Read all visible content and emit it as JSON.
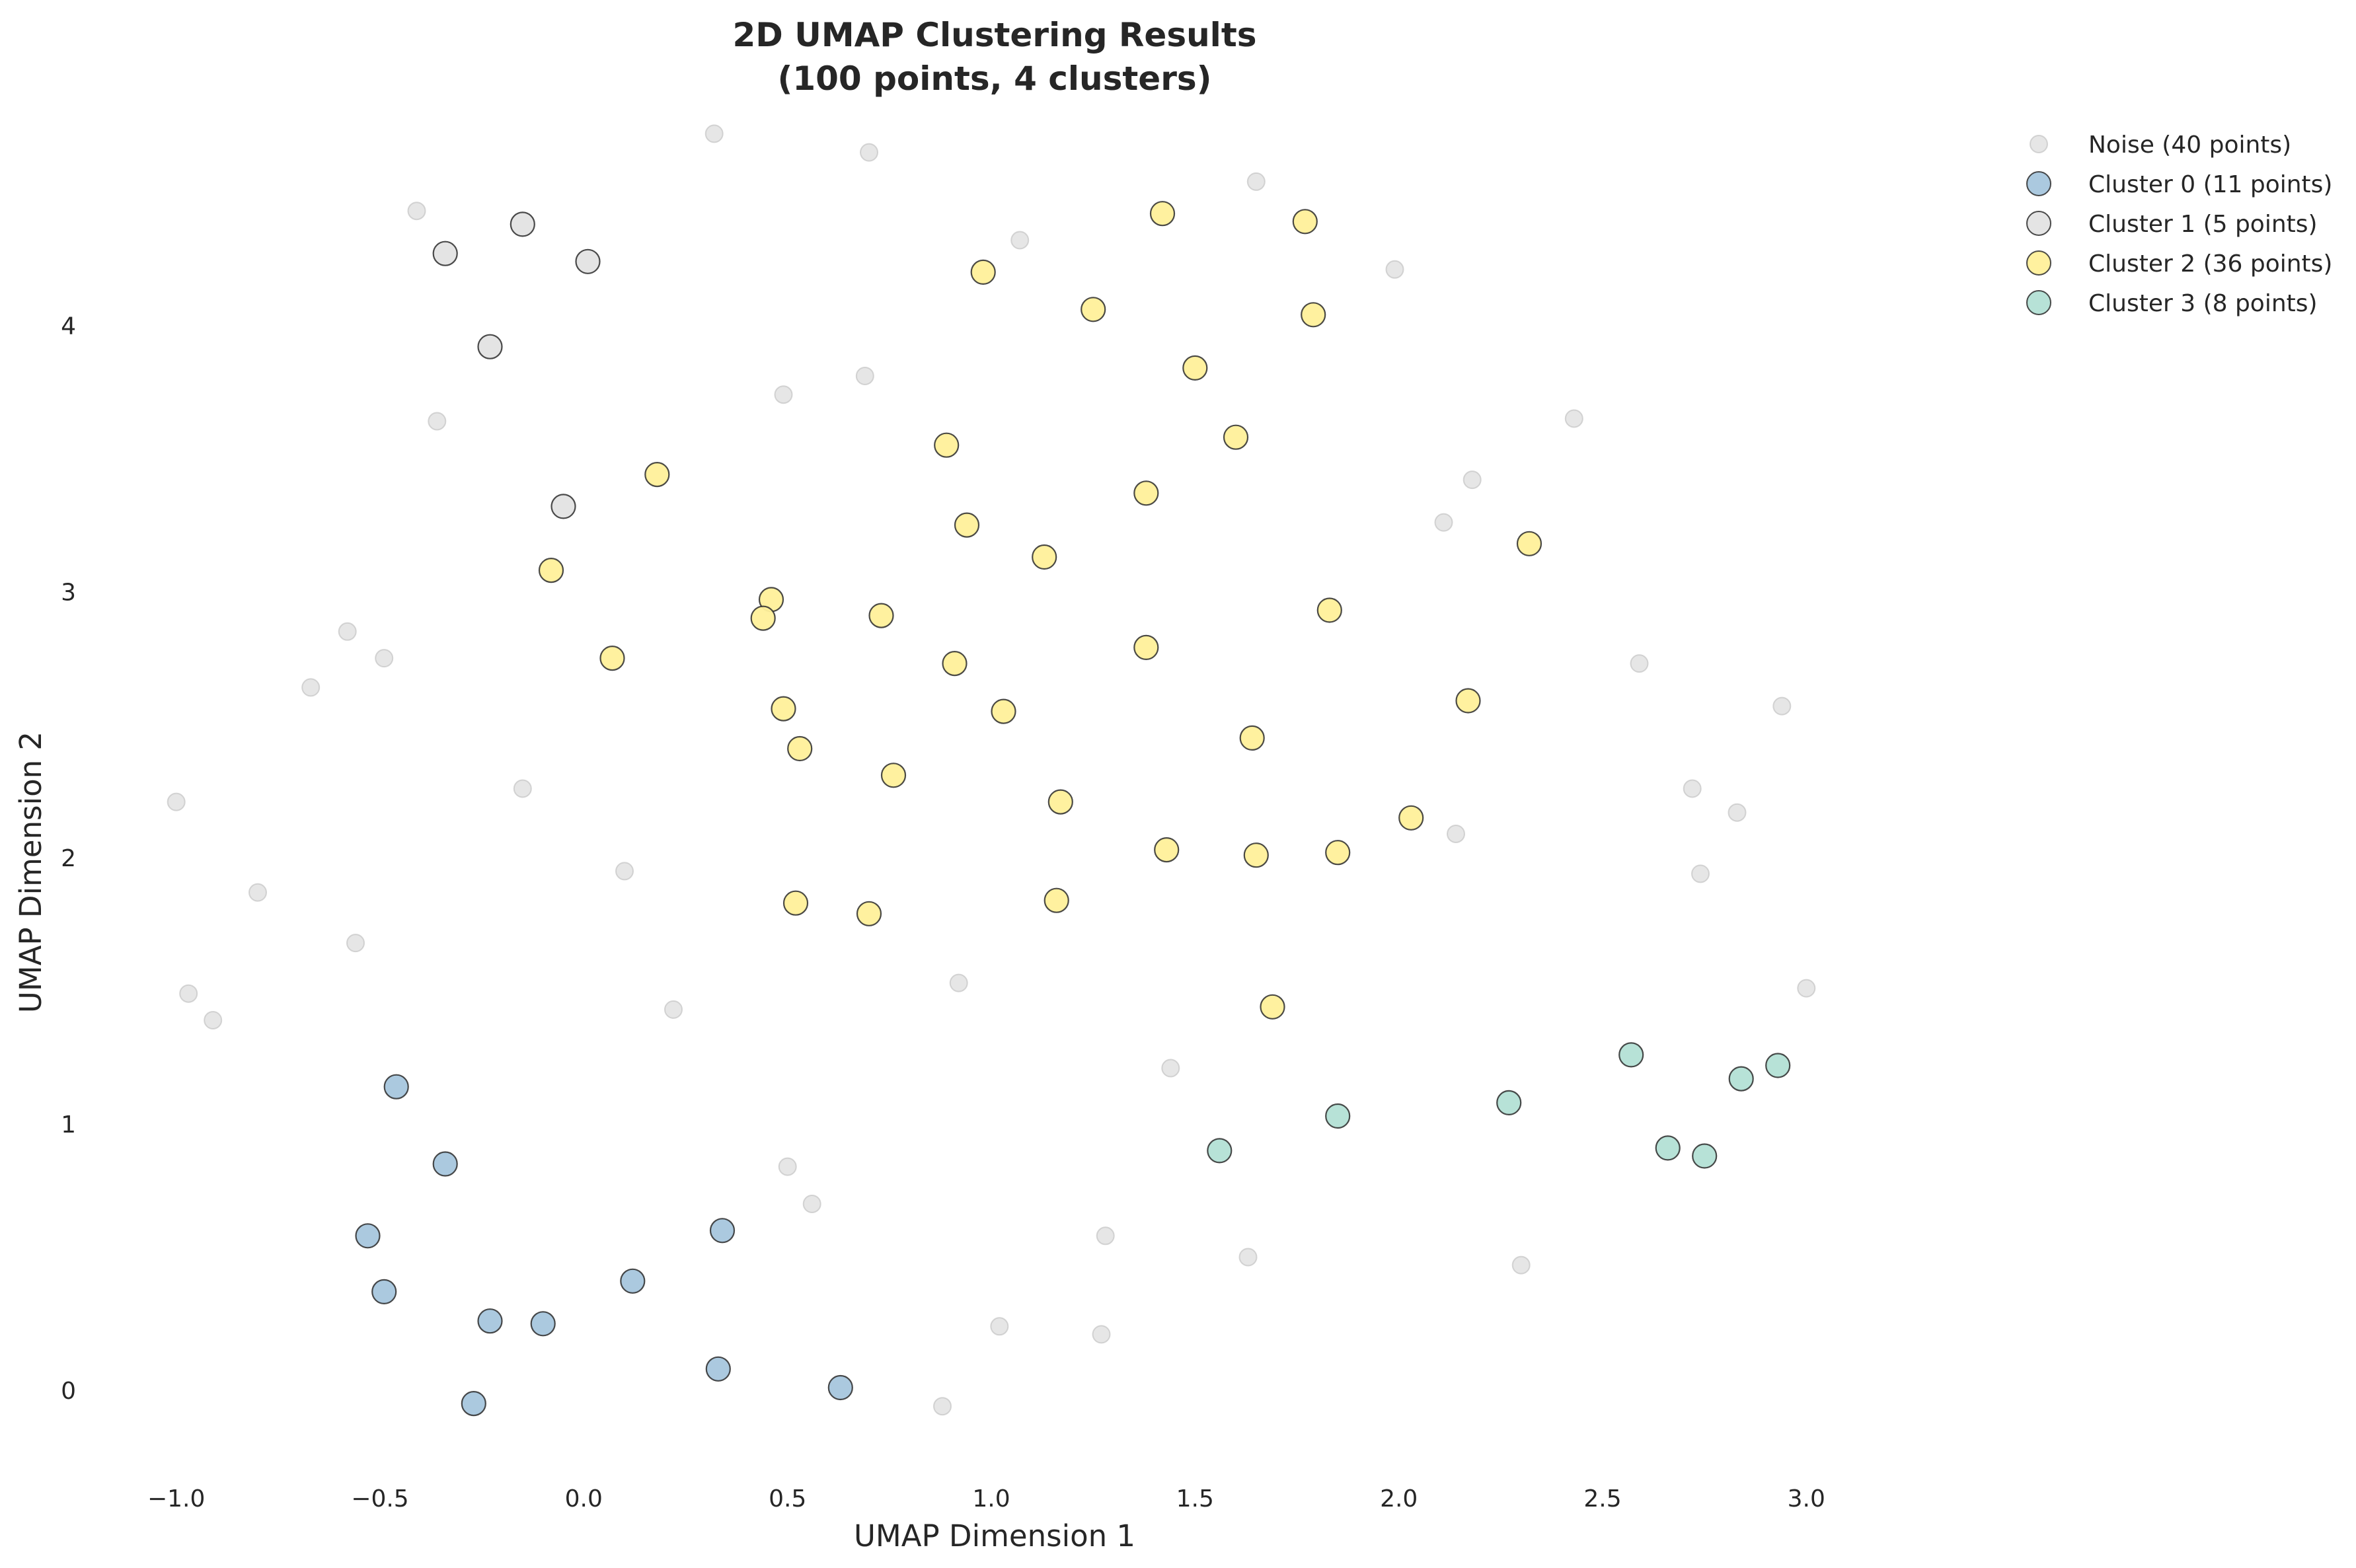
{
  "chart_data": {
    "type": "scatter",
    "title": [
      "2D UMAP Clustering Results",
      "(100 points, 4 clusters)"
    ],
    "xlabel": "UMAP Dimension 1",
    "ylabel": "UMAP Dimension 2",
    "xlim": [
      -1.1,
      3.1
    ],
    "ylim": [
      -0.35,
      4.85
    ],
    "xticks": [
      -1.0,
      -0.5,
      0.0,
      0.5,
      1.0,
      1.5,
      2.0,
      2.5,
      3.0
    ],
    "xtick_labels": [
      "−1.0",
      "−0.5",
      "0.0",
      "0.5",
      "1.0",
      "1.5",
      "2.0",
      "2.5",
      "3.0"
    ],
    "yticks": [
      0,
      1,
      2,
      3,
      4
    ],
    "ytick_labels": [
      "0",
      "1",
      "2",
      "3",
      "4"
    ],
    "grid": false,
    "legend_position": "top-right outside",
    "series": [
      {
        "name": "Noise (40 points)",
        "color": "#d9d9d9",
        "size": "small",
        "points": [
          [
            -1.0,
            2.21
          ],
          [
            -0.97,
            1.49
          ],
          [
            -0.91,
            1.39
          ],
          [
            -0.8,
            1.87
          ],
          [
            -0.67,
            2.64
          ],
          [
            -0.58,
            2.85
          ],
          [
            -0.56,
            1.68
          ],
          [
            -0.49,
            2.75
          ],
          [
            -0.41,
            4.43
          ],
          [
            -0.36,
            3.64
          ],
          [
            -0.15,
            2.26
          ],
          [
            0.1,
            1.95
          ],
          [
            0.22,
            1.43
          ],
          [
            0.32,
            4.72
          ],
          [
            0.49,
            3.74
          ],
          [
            0.5,
            0.84
          ],
          [
            0.56,
            0.7
          ],
          [
            0.69,
            3.81
          ],
          [
            0.7,
            4.65
          ],
          [
            0.88,
            -0.06
          ],
          [
            0.92,
            1.53
          ],
          [
            1.02,
            0.24
          ],
          [
            1.07,
            4.32
          ],
          [
            1.27,
            0.21
          ],
          [
            1.28,
            0.58
          ],
          [
            1.44,
            1.21
          ],
          [
            1.63,
            0.5
          ],
          [
            1.65,
            4.54
          ],
          [
            1.99,
            4.21
          ],
          [
            2.11,
            3.26
          ],
          [
            2.14,
            2.09
          ],
          [
            2.18,
            3.42
          ],
          [
            2.3,
            0.47
          ],
          [
            2.43,
            3.65
          ],
          [
            2.59,
            2.73
          ],
          [
            2.72,
            2.26
          ],
          [
            2.74,
            1.94
          ],
          [
            2.83,
            2.17
          ],
          [
            2.94,
            2.57
          ],
          [
            3.0,
            1.51
          ]
        ]
      },
      {
        "name": "Cluster 0 (11 points)",
        "color": "#a6c6dd",
        "size": "large",
        "points": [
          [
            -0.46,
            1.14
          ],
          [
            -0.34,
            0.85
          ],
          [
            -0.53,
            0.58
          ],
          [
            -0.49,
            0.37
          ],
          [
            -0.23,
            0.26
          ],
          [
            -0.1,
            0.25
          ],
          [
            0.12,
            0.41
          ],
          [
            0.34,
            0.6
          ],
          [
            0.33,
            0.08
          ],
          [
            -0.27,
            -0.05
          ],
          [
            0.63,
            0.01
          ]
        ]
      },
      {
        "name": "Cluster 1 (5 points)",
        "color": "#e3e3e3",
        "size": "large",
        "points": [
          [
            -0.34,
            4.27
          ],
          [
            -0.15,
            4.38
          ],
          [
            0.01,
            4.24
          ],
          [
            -0.23,
            3.92
          ],
          [
            -0.05,
            3.32
          ]
        ]
      },
      {
        "name": "Cluster 2 (36 points)",
        "color": "#fff09a",
        "size": "large",
        "points": [
          [
            1.42,
            4.42
          ],
          [
            1.77,
            4.39
          ],
          [
            0.98,
            4.2
          ],
          [
            1.25,
            4.06
          ],
          [
            1.79,
            4.04
          ],
          [
            1.5,
            3.84
          ],
          [
            1.6,
            3.58
          ],
          [
            0.89,
            3.55
          ],
          [
            0.18,
            3.44
          ],
          [
            1.38,
            3.37
          ],
          [
            0.94,
            3.25
          ],
          [
            2.32,
            3.18
          ],
          [
            1.13,
            3.13
          ],
          [
            -0.08,
            3.08
          ],
          [
            0.46,
            2.97
          ],
          [
            1.83,
            2.93
          ],
          [
            0.44,
            2.9
          ],
          [
            0.73,
            2.91
          ],
          [
            1.38,
            2.79
          ],
          [
            0.07,
            2.75
          ],
          [
            0.91,
            2.73
          ],
          [
            2.17,
            2.59
          ],
          [
            0.49,
            2.56
          ],
          [
            1.03,
            2.55
          ],
          [
            1.64,
            2.45
          ],
          [
            0.53,
            2.41
          ],
          [
            0.76,
            2.31
          ],
          [
            1.17,
            2.21
          ],
          [
            2.03,
            2.15
          ],
          [
            1.43,
            2.03
          ],
          [
            1.65,
            2.01
          ],
          [
            1.85,
            2.02
          ],
          [
            0.52,
            1.83
          ],
          [
            1.16,
            1.84
          ],
          [
            0.7,
            1.79
          ],
          [
            1.69,
            1.44
          ]
        ]
      },
      {
        "name": "Cluster 3 (8 points)",
        "color": "#b3e0d5",
        "size": "large",
        "points": [
          [
            2.57,
            1.26
          ],
          [
            2.93,
            1.22
          ],
          [
            2.84,
            1.17
          ],
          [
            2.27,
            1.08
          ],
          [
            1.85,
            1.03
          ],
          [
            1.56,
            0.9
          ],
          [
            2.66,
            0.91
          ],
          [
            2.75,
            0.88
          ]
        ]
      }
    ]
  }
}
